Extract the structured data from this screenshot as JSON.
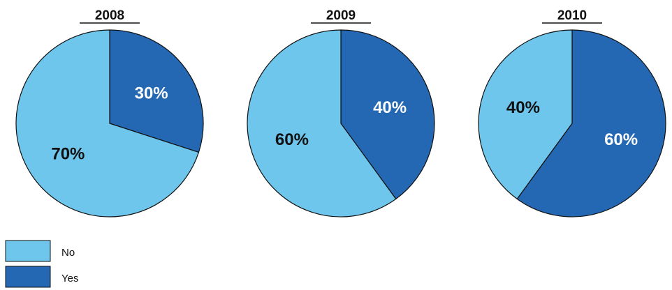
{
  "chart_data": [
    {
      "type": "pie",
      "title": "2008",
      "slices": [
        {
          "label": "Yes",
          "value": 30,
          "text": "30%"
        },
        {
          "label": "No",
          "value": 70,
          "text": "70%"
        }
      ]
    },
    {
      "type": "pie",
      "title": "2009",
      "slices": [
        {
          "label": "Yes",
          "value": 40,
          "text": "40%"
        },
        {
          "label": "No",
          "value": 60,
          "text": "60%"
        }
      ]
    },
    {
      "type": "pie",
      "title": "2010",
      "slices": [
        {
          "label": "Yes",
          "value": 60,
          "text": "60%"
        },
        {
          "label": "No",
          "value": 40,
          "text": "40%"
        }
      ]
    }
  ],
  "legend": {
    "items": [
      {
        "label": "No",
        "color": "#6ec6ec"
      },
      {
        "label": "Yes",
        "color": "#2468b4"
      }
    ]
  },
  "colors": {
    "No": "#6ec6ec",
    "Yes": "#2468b4",
    "outline": "#111111",
    "label_on_dark": "#ffffff",
    "label_on_light": "#111111"
  }
}
